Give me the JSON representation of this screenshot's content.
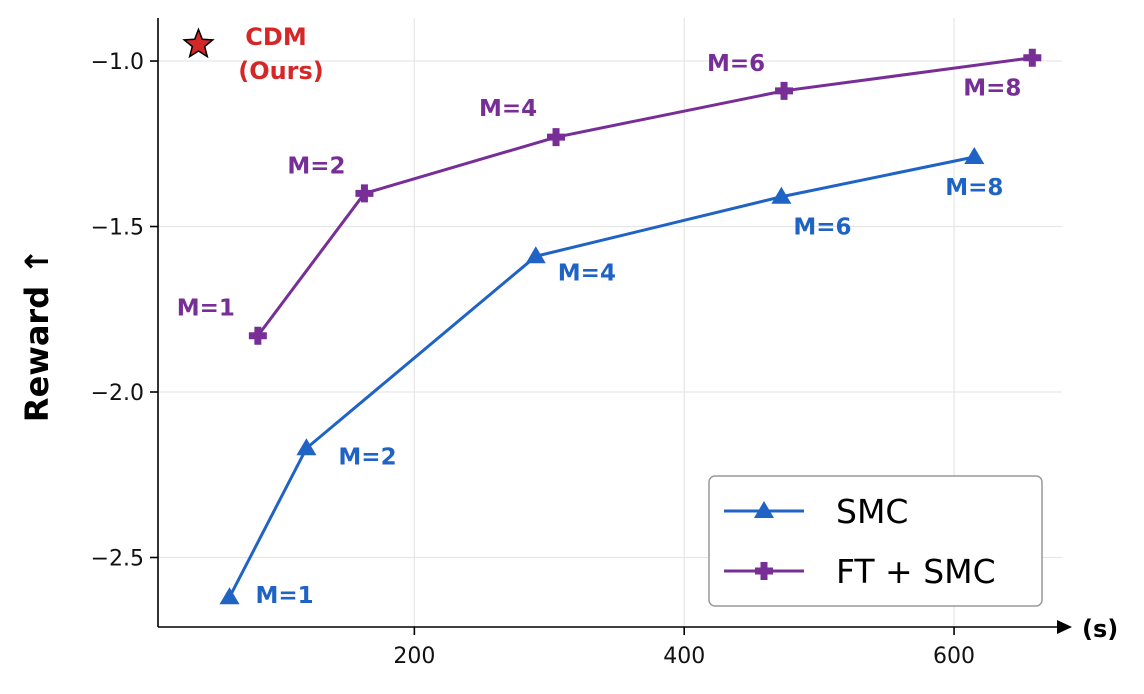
{
  "chart_data": {
    "type": "line",
    "xlabel": "(s)",
    "ylabel": "Reward ↑",
    "xlim": [
      10,
      680
    ],
    "ylim": [
      -2.71,
      -0.87
    ],
    "xticks": [
      200,
      400,
      600
    ],
    "xtick_labels": [
      "200",
      "400",
      "600"
    ],
    "yticks": [
      -1.0,
      -1.5,
      -2.0,
      -2.5
    ],
    "ytick_labels": [
      "−1.0",
      "−1.5",
      "−2.0",
      "−2.5"
    ],
    "grid": true,
    "legend": "bottom-right",
    "series": [
      {
        "name": "SMC",
        "color": "#1f63c4",
        "marker": "triangle",
        "x": [
          63,
          120,
          290,
          472,
          615
        ],
        "y": [
          -2.62,
          -2.17,
          -1.59,
          -1.41,
          -1.29
        ],
        "labels": [
          "M=1",
          "M=2",
          "M=4",
          "M=6",
          "M=8"
        ]
      },
      {
        "name": "FT + SMC",
        "color": "#772e96",
        "marker": "plus",
        "x": [
          84,
          163,
          305,
          474,
          658
        ],
        "y": [
          -1.83,
          -1.4,
          -1.23,
          -1.09,
          -0.99
        ],
        "labels": [
          "M=1",
          "M=2",
          "M=4",
          "M=6",
          "M=8"
        ]
      }
    ],
    "highlight_point": {
      "label_line1": "CDM",
      "label_line2": "(Ours)",
      "x": 40,
      "y": -0.95,
      "marker": "star",
      "color": "#d62728"
    }
  }
}
